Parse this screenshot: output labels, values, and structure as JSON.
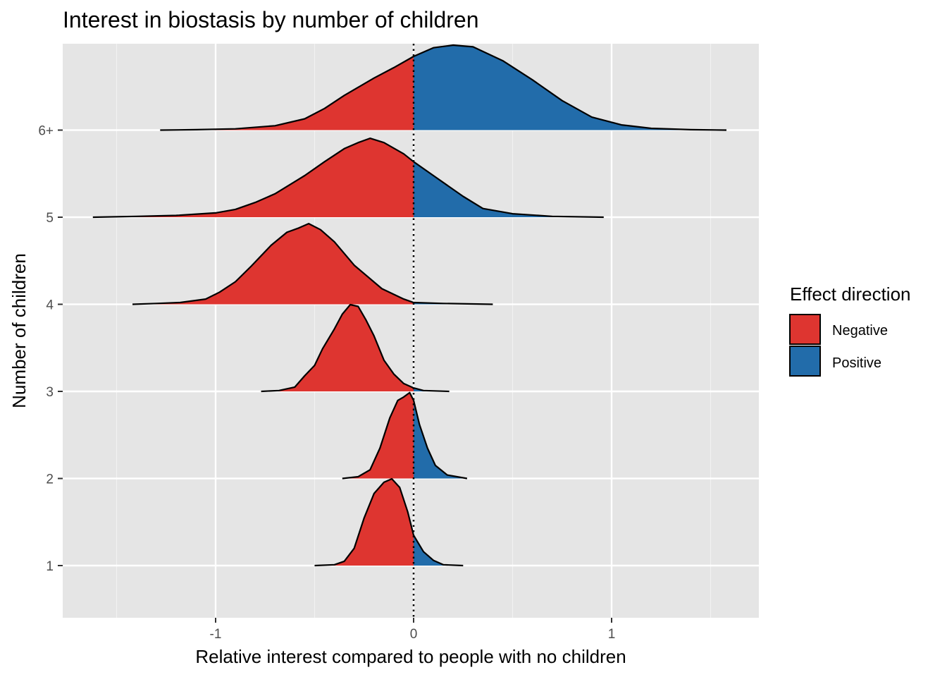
{
  "chart_data": {
    "type": "ridgeline",
    "title": "Interest in biostasis by number of children",
    "xlabel": "Relative interest compared to people with no children",
    "ylabel": "Number of children",
    "xlim": [
      -1.78,
      1.74
    ],
    "x_ticks": [
      -1,
      0,
      1
    ],
    "x_tick_labels": [
      "-1",
      "0",
      "1"
    ],
    "reference_line": {
      "x": 0,
      "style": "dotted"
    },
    "grid": true,
    "legend": {
      "title": "Effect direction",
      "position": "right",
      "entries": [
        {
          "label": "Negative",
          "color": "#DE3530"
        },
        {
          "label": "Positive",
          "color": "#226CAA"
        }
      ]
    },
    "series": [
      {
        "name": "1",
        "curve": [
          [
            -0.5,
            0
          ],
          [
            -0.4,
            0.01
          ],
          [
            -0.35,
            0.05
          ],
          [
            -0.3,
            0.2
          ],
          [
            -0.25,
            0.55
          ],
          [
            -0.2,
            0.83
          ],
          [
            -0.15,
            0.96
          ],
          [
            -0.11,
            1.0
          ],
          [
            -0.07,
            0.9
          ],
          [
            -0.03,
            0.62
          ],
          [
            0.0,
            0.35
          ],
          [
            0.05,
            0.16
          ],
          [
            0.1,
            0.06
          ],
          [
            0.15,
            0.01
          ],
          [
            0.25,
            0
          ]
        ]
      },
      {
        "name": "2",
        "curve": [
          [
            -0.36,
            0
          ],
          [
            -0.28,
            0.02
          ],
          [
            -0.22,
            0.1
          ],
          [
            -0.17,
            0.35
          ],
          [
            -0.12,
            0.7
          ],
          [
            -0.08,
            0.9
          ],
          [
            -0.05,
            0.94
          ],
          [
            -0.02,
            0.99
          ],
          [
            0.0,
            0.9
          ],
          [
            0.03,
            0.62
          ],
          [
            0.07,
            0.35
          ],
          [
            0.11,
            0.15
          ],
          [
            0.17,
            0.04
          ],
          [
            0.27,
            0
          ]
        ]
      },
      {
        "name": "3",
        "curve": [
          [
            -0.77,
            0
          ],
          [
            -0.68,
            0.01
          ],
          [
            -0.6,
            0.05
          ],
          [
            -0.55,
            0.18
          ],
          [
            -0.5,
            0.3
          ],
          [
            -0.46,
            0.49
          ],
          [
            -0.4,
            0.72
          ],
          [
            -0.36,
            0.89
          ],
          [
            -0.32,
            1.0
          ],
          [
            -0.28,
            0.98
          ],
          [
            -0.24,
            0.82
          ],
          [
            -0.2,
            0.64
          ],
          [
            -0.15,
            0.36
          ],
          [
            -0.1,
            0.2
          ],
          [
            -0.05,
            0.09
          ],
          [
            0.0,
            0.04
          ],
          [
            0.05,
            0.01
          ],
          [
            0.18,
            0
          ]
        ]
      },
      {
        "name": "4",
        "curve": [
          [
            -1.42,
            0
          ],
          [
            -1.3,
            0.01
          ],
          [
            -1.18,
            0.02
          ],
          [
            -1.05,
            0.06
          ],
          [
            -0.98,
            0.14
          ],
          [
            -0.9,
            0.26
          ],
          [
            -0.82,
            0.44
          ],
          [
            -0.72,
            0.68
          ],
          [
            -0.64,
            0.83
          ],
          [
            -0.58,
            0.88
          ],
          [
            -0.53,
            0.93
          ],
          [
            -0.47,
            0.86
          ],
          [
            -0.4,
            0.72
          ],
          [
            -0.3,
            0.45
          ],
          [
            -0.16,
            0.18
          ],
          [
            -0.05,
            0.06
          ],
          [
            0.0,
            0.02
          ],
          [
            0.15,
            0.01
          ],
          [
            0.4,
            0
          ]
        ]
      },
      {
        "name": "5",
        "curve": [
          [
            -1.62,
            0
          ],
          [
            -1.4,
            0.01
          ],
          [
            -1.2,
            0.02
          ],
          [
            -1.0,
            0.05
          ],
          [
            -0.9,
            0.09
          ],
          [
            -0.8,
            0.17
          ],
          [
            -0.7,
            0.27
          ],
          [
            -0.55,
            0.48
          ],
          [
            -0.45,
            0.64
          ],
          [
            -0.35,
            0.79
          ],
          [
            -0.28,
            0.86
          ],
          [
            -0.22,
            0.91
          ],
          [
            -0.15,
            0.86
          ],
          [
            -0.05,
            0.73
          ],
          [
            0.0,
            0.64
          ],
          [
            0.1,
            0.48
          ],
          [
            0.25,
            0.24
          ],
          [
            0.35,
            0.1
          ],
          [
            0.5,
            0.04
          ],
          [
            0.7,
            0.01
          ],
          [
            0.96,
            0
          ]
        ]
      },
      {
        "name": "6+",
        "curve": [
          [
            -1.28,
            0
          ],
          [
            -1.1,
            0.005
          ],
          [
            -0.9,
            0.015
          ],
          [
            -0.7,
            0.05
          ],
          [
            -0.55,
            0.13
          ],
          [
            -0.45,
            0.25
          ],
          [
            -0.35,
            0.4
          ],
          [
            -0.2,
            0.6
          ],
          [
            -0.1,
            0.72
          ],
          [
            0.0,
            0.85
          ],
          [
            0.1,
            0.95
          ],
          [
            0.2,
            0.98
          ],
          [
            0.3,
            0.96
          ],
          [
            0.45,
            0.8
          ],
          [
            0.6,
            0.58
          ],
          [
            0.75,
            0.34
          ],
          [
            0.9,
            0.15
          ],
          [
            1.05,
            0.06
          ],
          [
            1.2,
            0.02
          ],
          [
            1.4,
            0.005
          ],
          [
            1.58,
            0
          ]
        ]
      }
    ]
  }
}
